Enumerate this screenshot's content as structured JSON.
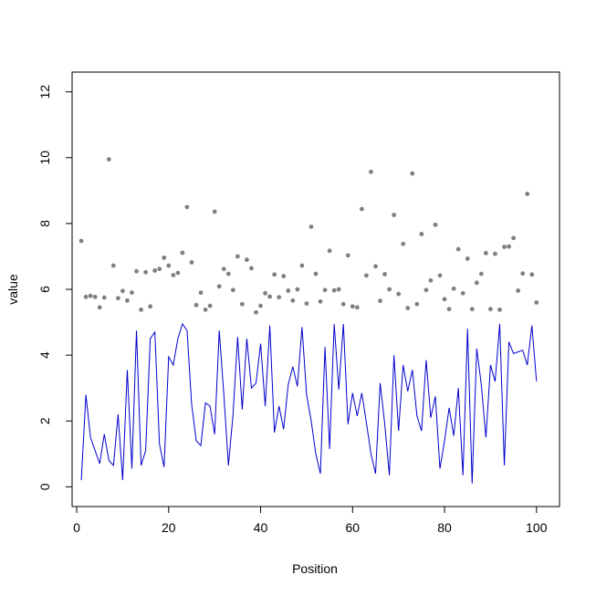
{
  "chart_data": {
    "type": "scatter",
    "title": "",
    "xlabel": "Position",
    "ylabel": "value",
    "xlim": [
      -1,
      105
    ],
    "ylim": [
      -0.6,
      12.6
    ],
    "x_ticks": [
      0,
      20,
      40,
      60,
      80,
      100
    ],
    "y_ticks": [
      0,
      2,
      4,
      6,
      8,
      10,
      12
    ],
    "grid": false,
    "series": [
      {
        "kind": "points",
        "color": "#808080",
        "x": [
          1,
          2,
          3,
          4,
          5,
          6,
          7,
          8,
          9,
          10,
          11,
          12,
          13,
          14,
          15,
          16,
          17,
          18,
          19,
          20,
          21,
          22,
          23,
          24,
          25,
          26,
          27,
          28,
          29,
          30,
          31,
          32,
          33,
          34,
          35,
          36,
          37,
          38,
          39,
          40,
          41,
          42,
          43,
          44,
          45,
          46,
          47,
          48,
          49,
          50,
          51,
          52,
          53,
          54,
          55,
          56,
          57,
          58,
          59,
          60,
          61,
          62,
          63,
          64,
          65,
          66,
          67,
          68,
          69,
          70,
          71,
          72,
          73,
          74,
          75,
          76,
          77,
          78,
          79,
          80,
          81,
          82,
          83,
          84,
          85,
          86,
          87,
          88,
          89,
          90,
          91,
          92,
          93,
          94,
          95,
          96,
          97,
          98,
          99,
          100
        ],
        "y": [
          7.47,
          5.77,
          5.8,
          5.77,
          5.45,
          5.75,
          9.95,
          6.72,
          5.73,
          5.95,
          5.66,
          5.9,
          6.55,
          5.38,
          6.52,
          5.48,
          6.57,
          6.62,
          6.96,
          6.72,
          6.43,
          6.5,
          7.11,
          8.5,
          6.82,
          5.52,
          5.9,
          5.38,
          5.5,
          8.36,
          6.09,
          6.62,
          6.47,
          5.98,
          7.0,
          5.55,
          6.9,
          6.64,
          5.3,
          5.5,
          5.88,
          5.78,
          6.45,
          5.76,
          6.4,
          5.96,
          5.66,
          6.0,
          6.72,
          5.57,
          7.9,
          6.47,
          5.63,
          5.98,
          7.17,
          5.97,
          6.0,
          5.55,
          7.03,
          5.48,
          5.45,
          8.44,
          6.42,
          9.57,
          6.7,
          5.65,
          6.46,
          6.0,
          8.26,
          5.86,
          7.38,
          5.43,
          9.52,
          5.55,
          7.68,
          5.98,
          6.27,
          7.96,
          6.42,
          5.7,
          5.4,
          6.02,
          7.22,
          5.88,
          6.93,
          5.4,
          6.2,
          6.47,
          7.1,
          5.4,
          7.08,
          5.38,
          7.29,
          7.3,
          7.56,
          5.96,
          6.48,
          8.9,
          6.45,
          5.6
        ]
      },
      {
        "kind": "line",
        "color": "#0000cd",
        "x": [
          1,
          2,
          3,
          4,
          5,
          6,
          7,
          8,
          9,
          10,
          11,
          12,
          13,
          14,
          15,
          16,
          17,
          18,
          19,
          20,
          21,
          22,
          23,
          24,
          25,
          26,
          27,
          28,
          29,
          30,
          31,
          32,
          33,
          34,
          35,
          36,
          37,
          38,
          39,
          40,
          41,
          42,
          43,
          44,
          45,
          46,
          47,
          48,
          49,
          50,
          51,
          52,
          53,
          54,
          55,
          56,
          57,
          58,
          59,
          60,
          61,
          62,
          63,
          64,
          65,
          66,
          67,
          68,
          69,
          70,
          71,
          72,
          73,
          74,
          75,
          76,
          77,
          78,
          79,
          80,
          81,
          82,
          83,
          84,
          85,
          86,
          87,
          88,
          89,
          90,
          91,
          92,
          93,
          94,
          95,
          96,
          97,
          98,
          99,
          100
        ],
        "y": [
          0.2,
          2.8,
          1.5,
          1.1,
          0.7,
          1.6,
          0.8,
          0.65,
          2.2,
          0.2,
          3.55,
          0.55,
          4.75,
          0.65,
          1.1,
          4.5,
          4.7,
          1.3,
          0.6,
          3.95,
          3.7,
          4.5,
          4.95,
          4.75,
          2.5,
          1.4,
          1.25,
          2.55,
          2.45,
          1.6,
          4.75,
          2.8,
          0.65,
          2.2,
          4.55,
          2.35,
          4.5,
          3.0,
          3.15,
          4.35,
          2.45,
          4.9,
          1.65,
          2.45,
          1.75,
          3.1,
          3.65,
          3.05,
          4.85,
          2.8,
          2.0,
          1.0,
          0.4,
          4.25,
          1.15,
          4.95,
          2.95,
          4.95,
          1.9,
          2.85,
          2.15,
          2.85,
          1.95,
          1.0,
          0.4,
          3.15,
          1.9,
          0.35,
          4.0,
          1.7,
          3.7,
          2.9,
          3.55,
          2.15,
          1.7,
          3.85,
          2.1,
          2.75,
          0.55,
          1.4,
          2.4,
          1.55,
          3.0,
          0.35,
          4.8,
          0.1,
          4.2,
          3.1,
          1.5,
          3.7,
          3.2,
          4.95,
          0.65,
          4.4,
          4.05,
          4.1,
          4.15,
          3.7,
          4.9,
          3.2
        ]
      }
    ]
  }
}
